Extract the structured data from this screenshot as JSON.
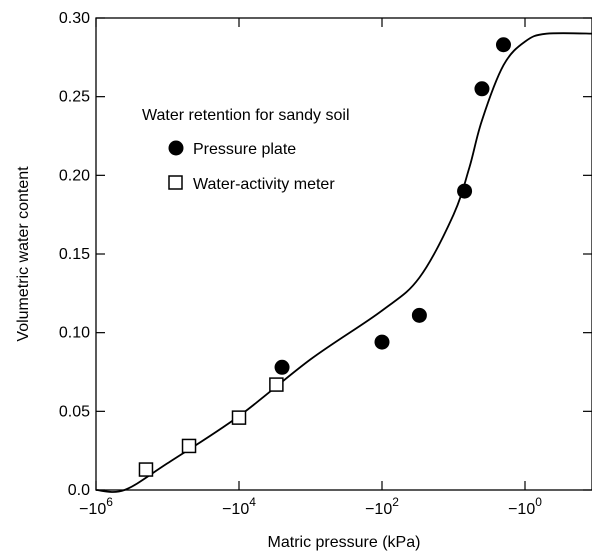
{
  "chart_data": {
    "type": "scatter",
    "title": "",
    "xlabel": "Matric pressure (kPa)",
    "ylabel": "Volumetric water content",
    "x_scale": "log-negative",
    "xlim": [
      -1000000,
      -0.1
    ],
    "ylim": [
      0,
      0.3
    ],
    "x_ticks": [
      {
        "value": -1000000,
        "base": "−10",
        "exp": "6"
      },
      {
        "value": -10000,
        "base": "−10",
        "exp": "4"
      },
      {
        "value": -100,
        "base": "−10",
        "exp": "2"
      },
      {
        "value": -1,
        "base": "−10",
        "exp": "0"
      }
    ],
    "y_ticks": [
      "0.0",
      "0.05",
      "0.10",
      "0.15",
      "0.20",
      "0.25",
      "0.30"
    ],
    "legend": {
      "title": "Water retention for sandy soil",
      "position": "upper-left"
    },
    "series": [
      {
        "name": "Pressure plate",
        "marker": "filled-circle",
        "points": [
          {
            "x": -2500,
            "y": 0.078
          },
          {
            "x": -100,
            "y": 0.094
          },
          {
            "x": -30,
            "y": 0.111
          },
          {
            "x": -7,
            "y": 0.19
          },
          {
            "x": -4,
            "y": 0.255
          },
          {
            "x": -2,
            "y": 0.283
          }
        ]
      },
      {
        "name": "Water-activity meter",
        "marker": "open-square",
        "points": [
          {
            "x": -200000,
            "y": 0.013
          },
          {
            "x": -50000,
            "y": 0.028
          },
          {
            "x": -10000,
            "y": 0.046
          },
          {
            "x": -3000,
            "y": 0.067
          }
        ]
      },
      {
        "marker": "none",
        "line": "solid",
        "points": [
          {
            "x": -1000000,
            "y": 0.0
          },
          {
            "x": -400000,
            "y": 0.0
          },
          {
            "x": -100000,
            "y": 0.017
          },
          {
            "x": -10000,
            "y": 0.047
          },
          {
            "x": -1000,
            "y": 0.083
          },
          {
            "x": -100,
            "y": 0.114
          },
          {
            "x": -30,
            "y": 0.135
          },
          {
            "x": -10,
            "y": 0.175
          },
          {
            "x": -6,
            "y": 0.205
          },
          {
            "x": -4,
            "y": 0.235
          },
          {
            "x": -2,
            "y": 0.27
          },
          {
            "x": -1,
            "y": 0.285
          },
          {
            "x": -0.5,
            "y": 0.29
          },
          {
            "x": -0.1,
            "y": 0.29
          }
        ]
      }
    ]
  }
}
